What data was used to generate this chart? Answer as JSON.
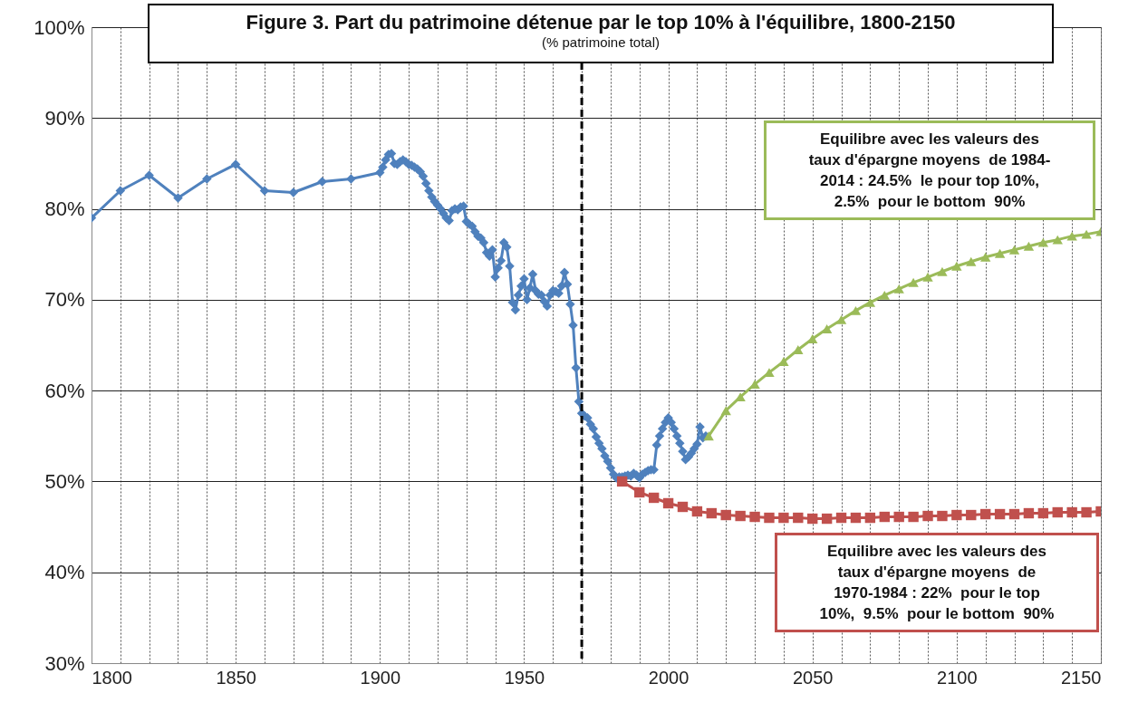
{
  "chart_data": {
    "type": "line",
    "title": "Figure 3. Part du patrimoine détenue par le top 10% à l'équilibre, 1800-2150",
    "subtitle": "(% patrimoine total)",
    "xlim": [
      1800,
      2150
    ],
    "xticks": [
      1800,
      {
        "value": 1810,
        "label": null
      },
      {
        "value": 1820,
        "label": null
      },
      {
        "value": 1830,
        "label": null
      },
      {
        "value": 1840,
        "label": null
      },
      1850,
      {
        "value": 1860,
        "label": null
      },
      {
        "value": 1870,
        "label": null
      },
      {
        "value": 1880,
        "label": null
      },
      {
        "value": 1890,
        "label": null
      },
      1900,
      {
        "value": 1910,
        "label": null
      },
      {
        "value": 1920,
        "label": null
      },
      {
        "value": 1930,
        "label": null
      },
      {
        "value": 1940,
        "label": null
      },
      1950,
      {
        "value": 1960,
        "label": null
      },
      {
        "value": 1970,
        "label": null
      },
      {
        "value": 1980,
        "label": null
      },
      {
        "value": 1990,
        "label": null
      },
      2000,
      {
        "value": 2010,
        "label": null
      },
      {
        "value": 2020,
        "label": null
      },
      {
        "value": 2030,
        "label": null
      },
      {
        "value": 2040,
        "label": null
      },
      2050,
      {
        "value": 2060,
        "label": null
      },
      {
        "value": 2070,
        "label": null
      },
      {
        "value": 2080,
        "label": null
      },
      {
        "value": 2090,
        "label": null
      },
      2100,
      {
        "value": 2110,
        "label": null
      },
      {
        "value": 2120,
        "label": null
      },
      {
        "value": 2130,
        "label": null
      },
      {
        "value": 2140,
        "label": null
      },
      2150
    ],
    "ylim": [
      30,
      100
    ],
    "yticks": [
      {
        "value": 30,
        "label": "30%"
      },
      {
        "value": 40,
        "label": "40%"
      },
      {
        "value": 50,
        "label": "50%"
      },
      {
        "value": 60,
        "label": "60%"
      },
      {
        "value": 70,
        "label": "70%"
      },
      {
        "value": 80,
        "label": "80%"
      },
      {
        "value": 90,
        "label": "90%"
      },
      {
        "value": 100,
        "label": "100%"
      }
    ],
    "grid": true,
    "line_style": "solid",
    "series": [
      {
        "color": "#4f81bd",
        "marker": "diamond",
        "x": [
          1800,
          1810,
          1820,
          1830,
          1840,
          1850,
          1860,
          1870,
          1880,
          1890,
          1900,
          1901,
          1902,
          1903,
          1904,
          1905,
          1906,
          1907,
          1908,
          1909,
          1910,
          1911,
          1912,
          1913,
          1914,
          1915,
          1916,
          1917,
          1918,
          1919,
          1920,
          1921,
          1922,
          1923,
          1924,
          1925,
          1926,
          1927,
          1928,
          1929,
          1930,
          1931,
          1932,
          1933,
          1934,
          1935,
          1936,
          1937,
          1938,
          1939,
          1940,
          1941,
          1942,
          1943,
          1944,
          1945,
          1946,
          1947,
          1948,
          1949,
          1950,
          1951,
          1952,
          1953,
          1954,
          1955,
          1956,
          1957,
          1958,
          1959,
          1960,
          1961,
          1962,
          1963,
          1964,
          1965,
          1966,
          1967,
          1968,
          1969,
          1970,
          1971,
          1972,
          1973,
          1974,
          1975,
          1976,
          1977,
          1978,
          1979,
          1980,
          1981,
          1982,
          1983,
          1984,
          1985,
          1986,
          1987,
          1988,
          1989,
          1990,
          1991,
          1992,
          1993,
          1994,
          1995,
          1996,
          1997,
          1998,
          1999,
          2000,
          2001,
          2002,
          2003,
          2004,
          2005,
          2006,
          2007,
          2008,
          2009,
          2010,
          2011,
          2012,
          2013
        ],
        "values": [
          79.0,
          82.0,
          83.7,
          81.2,
          83.3,
          84.9,
          82.0,
          81.8,
          83.0,
          83.3,
          84.0,
          84.6,
          85.4,
          86.0,
          86.1,
          85.0,
          84.9,
          85.2,
          85.4,
          85.2,
          84.9,
          84.8,
          84.6,
          84.4,
          84.1,
          83.6,
          82.8,
          82.0,
          81.3,
          80.8,
          80.4,
          80.0,
          79.5,
          79.0,
          78.7,
          79.8,
          80.0,
          79.9,
          80.2,
          80.3,
          78.6,
          78.3,
          78.1,
          77.5,
          77.0,
          76.8,
          76.3,
          75.2,
          74.8,
          75.5,
          72.5,
          73.5,
          74.3,
          76.3,
          75.8,
          73.7,
          69.7,
          68.9,
          70.5,
          71.5,
          72.3,
          70.0,
          71.3,
          72.8,
          71.0,
          70.6,
          70.5,
          69.8,
          69.3,
          70.5,
          71.0,
          70.9,
          70.7,
          71.5,
          73.0,
          71.7,
          69.5,
          67.2,
          62.5,
          58.8,
          57.5,
          57.2,
          57.0,
          56.3,
          55.8,
          54.9,
          54.2,
          53.6,
          52.8,
          52.2,
          51.5,
          50.8,
          50.4,
          50.5,
          50.5,
          50.6,
          50.7,
          50.6,
          50.9,
          50.7,
          50.4,
          50.8,
          51.0,
          51.2,
          51.3,
          51.3,
          54.0,
          55.0,
          55.8,
          56.5,
          57.0,
          56.5,
          55.8,
          55.0,
          54.2,
          53.3,
          52.4,
          52.7,
          53.1,
          53.6,
          54.1,
          56.0,
          54.8,
          55.0
        ]
      },
      {
        "color": "#c0504d",
        "marker": "square",
        "x": [
          1984,
          1990,
          1995,
          2000,
          2005,
          2010,
          2015,
          2020,
          2025,
          2030,
          2035,
          2040,
          2045,
          2050,
          2055,
          2060,
          2065,
          2070,
          2075,
          2080,
          2085,
          2090,
          2095,
          2100,
          2105,
          2110,
          2115,
          2120,
          2125,
          2130,
          2135,
          2140,
          2145,
          2150
        ],
        "values": [
          50.0,
          48.8,
          48.2,
          47.6,
          47.2,
          46.7,
          46.5,
          46.3,
          46.2,
          46.1,
          46.0,
          46.0,
          46.0,
          45.9,
          45.9,
          46.0,
          46.0,
          46.0,
          46.1,
          46.1,
          46.1,
          46.2,
          46.2,
          46.3,
          46.3,
          46.4,
          46.4,
          46.4,
          46.5,
          46.5,
          46.6,
          46.6,
          46.6,
          46.7
        ]
      },
      {
        "color": "#9bbb59",
        "marker": "triangle",
        "x": [
          2014,
          2020,
          2025,
          2030,
          2035,
          2040,
          2045,
          2050,
          2055,
          2060,
          2065,
          2070,
          2075,
          2080,
          2085,
          2090,
          2095,
          2100,
          2105,
          2110,
          2115,
          2120,
          2125,
          2130,
          2135,
          2140,
          2145,
          2150
        ],
        "values": [
          55.0,
          57.8,
          59.3,
          60.7,
          62.0,
          63.2,
          64.5,
          65.7,
          66.8,
          67.8,
          68.8,
          69.7,
          70.5,
          71.2,
          71.9,
          72.5,
          73.1,
          73.7,
          74.2,
          74.7,
          75.1,
          75.5,
          75.9,
          76.3,
          76.6,
          77.0,
          77.2,
          77.5
        ]
      }
    ],
    "ref_lines": [
      {
        "axis": "x",
        "value": 1970,
        "color": "#000000",
        "line_style": "dashed"
      }
    ],
    "annotations": [
      "Equilibre avec les valeurs des\ntaux d'épargne moyens  de 1984-\n2014 : 24.5%  le pour top 10%,\n2.5%  pour le bottom  90%",
      "Equilibre avec les valeurs des\ntaux d'épargne moyens  de\n1970-1984 : 22%  pour le top\n10%,  9.5%  pour le bottom  90%"
    ]
  }
}
